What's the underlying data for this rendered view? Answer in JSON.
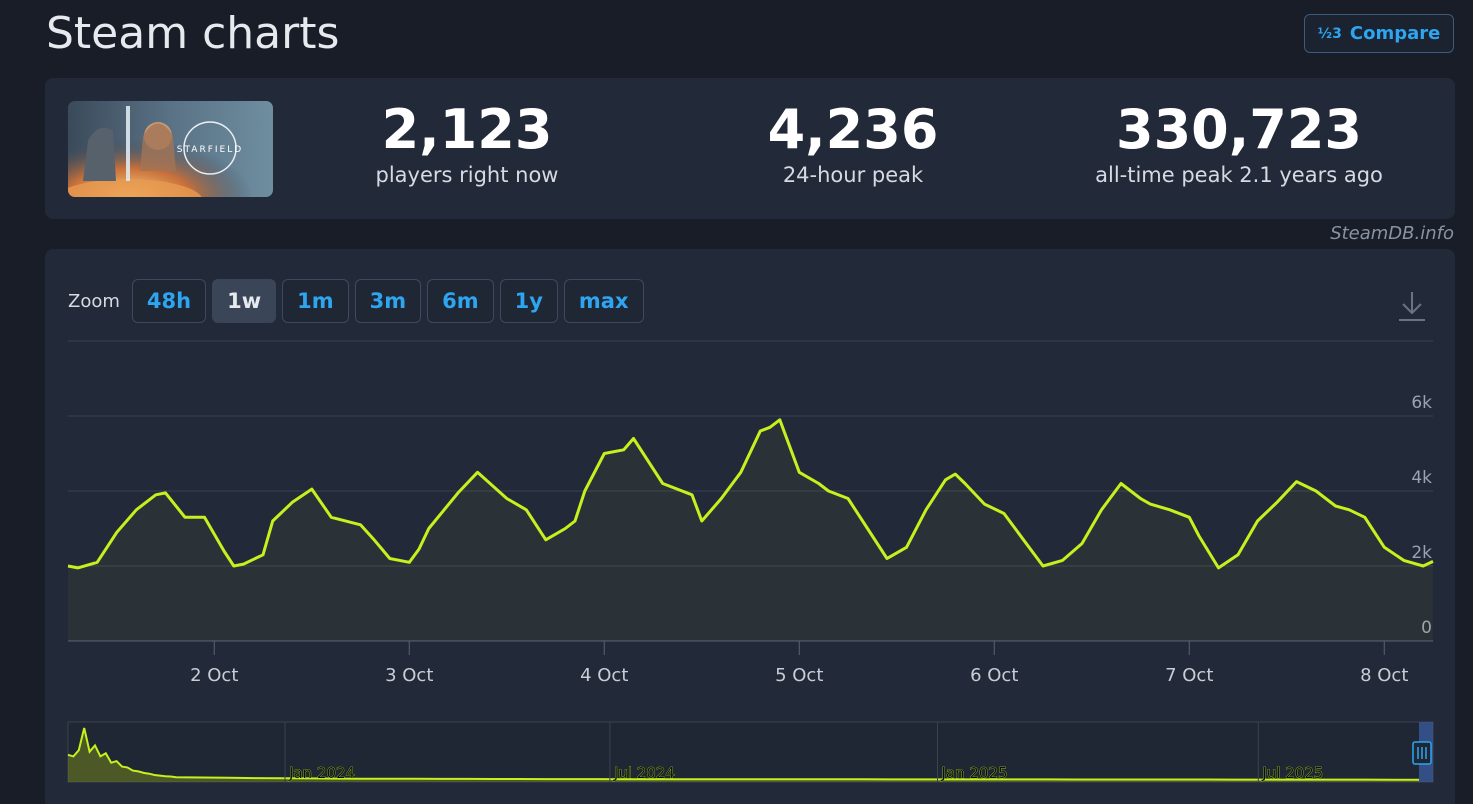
{
  "page": {
    "title": "Steam charts"
  },
  "compare": {
    "icon": "fractions-icon",
    "icon_text": "½3",
    "label": "Compare"
  },
  "game": {
    "logo_text": "STARFIELD"
  },
  "stats": [
    {
      "value": "2,123",
      "label": "players right now"
    },
    {
      "value": "4,236",
      "label": "24-hour peak"
    },
    {
      "value": "330,723",
      "label": "all-time peak 2.1 years ago"
    }
  ],
  "attribution": "SteamDB.info",
  "zoom": {
    "label": "Zoom",
    "options": [
      "48h",
      "1w",
      "1m",
      "3m",
      "6m",
      "1y",
      "max"
    ],
    "active": "1w"
  },
  "colors": {
    "accent": "#2ea5f0",
    "line": "#c6f01e",
    "background": "#181d27",
    "panel": "#222938"
  },
  "chart_data": {
    "type": "line",
    "series": [
      {
        "x": [
          1.25,
          1.3,
          1.4,
          1.5,
          1.6,
          1.7,
          1.75,
          1.85,
          1.95,
          2.05,
          2.1,
          2.15,
          2.25,
          2.3,
          2.4,
          2.5,
          2.6,
          2.75,
          2.82,
          2.9,
          3.0,
          3.05,
          3.1,
          3.25,
          3.35,
          3.5,
          3.6,
          3.7,
          3.8,
          3.85,
          3.9,
          4.0,
          4.1,
          4.15,
          4.3,
          4.45,
          4.5,
          4.6,
          4.7,
          4.8,
          4.85,
          4.9,
          5.0,
          5.1,
          5.15,
          5.25,
          5.35,
          5.45,
          5.55,
          5.65,
          5.75,
          5.8,
          5.85,
          5.95,
          6.05,
          6.15,
          6.25,
          6.35,
          6.45,
          6.55,
          6.65,
          6.75,
          6.8,
          6.9,
          7.0,
          7.05,
          7.15,
          7.25,
          7.35,
          7.45,
          7.55,
          7.65,
          7.75,
          7.82,
          7.9,
          8.0,
          8.1,
          8.2,
          8.25
        ],
        "y": [
          2000,
          1950,
          2100,
          2900,
          3500,
          3900,
          3950,
          3300,
          3300,
          2400,
          2000,
          2050,
          2300,
          3200,
          3700,
          4050,
          3300,
          3100,
          2700,
          2200,
          2100,
          2450,
          3000,
          3950,
          4500,
          3800,
          3500,
          2700,
          3000,
          3200,
          4000,
          5000,
          5100,
          5400,
          4200,
          3900,
          3200,
          3800,
          4500,
          5600,
          5700,
          5900,
          4500,
          4200,
          4000,
          3800,
          3000,
          2200,
          2500,
          3500,
          4300,
          4450,
          4200,
          3650,
          3400,
          2700,
          2000,
          2150,
          2600,
          3500,
          4200,
          3800,
          3650,
          3500,
          3300,
          2800,
          1950,
          2300,
          3200,
          3700,
          4250,
          4000,
          3600,
          3500,
          3300,
          2500,
          2150,
          2000,
          2123
        ]
      }
    ],
    "x_ticks": [
      "2 Oct",
      "3 Oct",
      "4 Oct",
      "5 Oct",
      "6 Oct",
      "7 Oct",
      "8 Oct"
    ],
    "x_tick_values": [
      2,
      3,
      4,
      5,
      6,
      7,
      8
    ],
    "xlim": [
      1.25,
      8.25
    ],
    "y_ticks": [
      "0",
      "2k",
      "4k",
      "6k"
    ],
    "y_tick_values": [
      0,
      2000,
      4000,
      6000
    ],
    "ylim": [
      0,
      8000
    ],
    "grid": true,
    "navigator": {
      "labels": [
        "Jan 2024",
        "Jul 2024",
        "Jan 2025",
        "Jul 2025"
      ],
      "label_positions": [
        0.159,
        0.397,
        0.637,
        0.872
      ],
      "values": [
        160000,
        150000,
        190000,
        330723,
        180000,
        220000,
        150000,
        170000,
        110000,
        120000,
        85000,
        80000,
        60000,
        55000,
        45000,
        40000,
        32000,
        28000,
        24000,
        22000,
        18000,
        16000,
        14000,
        12000,
        11000,
        10000,
        9000,
        8500,
        8000,
        7500,
        7000,
        6800,
        6500,
        6200,
        6000,
        5800,
        5500,
        5300,
        5100,
        5000,
        4800,
        4700,
        4600,
        4500,
        4400,
        4300,
        4200,
        4100,
        4000,
        3900,
        3800,
        3700,
        3600,
        3500,
        3400,
        3300,
        3200,
        3100,
        3000,
        2900,
        2800,
        2700,
        2600,
        2500,
        2400,
        2300,
        2200,
        2100
      ]
    }
  }
}
